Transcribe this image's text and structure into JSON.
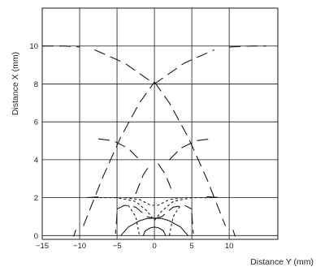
{
  "chart_data": {
    "type": "line",
    "title": "",
    "xlabel": "Distance Y (mm)",
    "ylabel": "Distance X (mm)",
    "xlim": [
      -15,
      16.5
    ],
    "ylim": [
      -0.2,
      12
    ],
    "grid": true,
    "legend": "none",
    "x_ticks": [
      -15,
      -10,
      -5,
      0,
      5,
      10
    ],
    "x_tick_labels": [
      "−15",
      "−10",
      "−5",
      "0",
      "5",
      "10"
    ],
    "y_ticks": [
      0,
      2,
      4,
      6,
      8,
      10
    ],
    "y_tick_labels": [
      "0",
      "2",
      "4",
      "6",
      "8",
      "10"
    ],
    "colors": {
      "line": "#1a1a1a",
      "grid": "#1a1a1a",
      "axis": "#1a1a1a"
    },
    "series": [
      {
        "style": "long-dash",
        "x": [
          -15,
          -12,
          -10
        ],
        "y": [
          10,
          10,
          9.95
        ]
      },
      {
        "style": "long-dash",
        "x": [
          10,
          13,
          15
        ],
        "y": [
          9.95,
          10,
          10
        ]
      },
      {
        "style": "long-dash",
        "x": [
          -8,
          -4,
          0,
          4,
          8
        ],
        "y": [
          9.8,
          9.1,
          8,
          9.1,
          9.8
        ]
      },
      {
        "style": "long-dash",
        "x": [
          -9.5,
          -7,
          -4.5,
          -2,
          0
        ],
        "y": [
          0.5,
          3.0,
          5.2,
          7.0,
          8.1
        ]
      },
      {
        "style": "long-dash",
        "x": [
          0,
          2,
          4.5,
          7,
          9.5
        ],
        "y": [
          8.1,
          7.0,
          5.2,
          3.0,
          0.5
        ]
      },
      {
        "style": "long-dash",
        "x": [
          -10.8,
          -10.5
        ],
        "y": [
          -0.05,
          0.3
        ]
      },
      {
        "style": "long-dash",
        "x": [
          10.5,
          10.8
        ],
        "y": [
          0.3,
          -0.05
        ]
      },
      {
        "style": "long-dash",
        "x": [
          -7.5,
          -5.5,
          -3.5,
          -2
        ],
        "y": [
          5.1,
          5.0,
          4.6,
          4.0
        ]
      },
      {
        "style": "long-dash",
        "x": [
          2,
          3.5,
          5.5,
          7.5
        ],
        "y": [
          4.0,
          4.6,
          5.0,
          5.1
        ]
      },
      {
        "style": "long-dash",
        "x": [
          -2.5,
          -1.5,
          -0.5
        ],
        "y": [
          2.2,
          3.2,
          3.8
        ]
      },
      {
        "style": "long-dash",
        "x": [
          0.5,
          1.5,
          2.5
        ],
        "y": [
          3.8,
          3.2,
          2.2
        ]
      },
      {
        "style": "long-dash",
        "x": [
          -9,
          -7
        ],
        "y": [
          2.0,
          2.05
        ]
      },
      {
        "style": "long-dash",
        "x": [
          7,
          9
        ],
        "y": [
          2.05,
          2.0
        ]
      },
      {
        "style": "long-dash",
        "x": [
          -5,
          -4,
          -2.5,
          -1,
          0
        ],
        "y": [
          1.4,
          1.6,
          1.5,
          1.0,
          0.9
        ]
      },
      {
        "style": "long-dash",
        "x": [
          0,
          1,
          2.5,
          4,
          5
        ],
        "y": [
          0.9,
          1.0,
          1.5,
          1.6,
          1.4
        ]
      },
      {
        "style": "long-dash",
        "x": [
          -5,
          -5.1,
          -5.2
        ],
        "y": [
          1.2,
          0.6,
          0.1
        ]
      },
      {
        "style": "long-dash",
        "x": [
          5,
          5.1,
          5.2
        ],
        "y": [
          1.2,
          0.6,
          0.1
        ]
      },
      {
        "style": "short-dash",
        "x": [
          -8,
          -5,
          -2.5,
          -1,
          0
        ],
        "y": [
          2.0,
          2.0,
          1.8,
          1.3,
          0.8
        ]
      },
      {
        "style": "short-dash",
        "x": [
          0,
          1,
          2.5,
          5,
          8
        ],
        "y": [
          0.8,
          1.3,
          1.8,
          2.0,
          2.0
        ]
      },
      {
        "style": "short-dash",
        "x": [
          -4,
          -2,
          -0.5,
          0.5,
          2,
          4
        ],
        "y": [
          2.0,
          1.9,
          1.6,
          1.6,
          1.9,
          2.0
        ]
      },
      {
        "style": "short-dash",
        "x": [
          -3.5,
          -2.5,
          -2
        ],
        "y": [
          1.6,
          1.0,
          0
        ]
      },
      {
        "style": "short-dash",
        "x": [
          2,
          2.5,
          3.5
        ],
        "y": [
          0,
          1.0,
          1.6
        ]
      },
      {
        "style": "solid",
        "x": [
          -4.5,
          -3.5,
          -2,
          -1,
          0,
          1,
          2,
          3.5,
          4.5
        ],
        "y": [
          0,
          0.45,
          0.78,
          0.9,
          0.92,
          0.9,
          0.78,
          0.45,
          0
        ]
      },
      {
        "style": "solid",
        "x": [
          -1.5,
          -1.2,
          -0.6,
          0,
          0.6,
          1.2,
          1.5
        ],
        "y": [
          0,
          0.25,
          0.4,
          0.45,
          0.4,
          0.25,
          0
        ]
      }
    ]
  }
}
